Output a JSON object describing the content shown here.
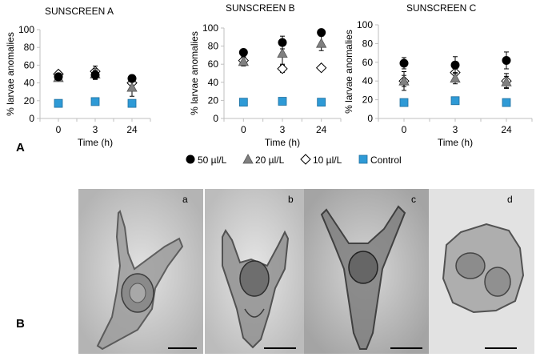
{
  "figure": {
    "panel_a_label": "A",
    "panel_b_label": "B"
  },
  "legend": {
    "items": [
      {
        "label": "50 µl/L",
        "symbol": "circle",
        "color": "#000000"
      },
      {
        "label": "20 µl/L",
        "symbol": "triangle",
        "color": "#808080"
      },
      {
        "label": "10 µl/L",
        "symbol": "diamond-open",
        "color": "#ffffff"
      },
      {
        "label": "Control",
        "symbol": "square",
        "color": "#2e9ad6"
      }
    ]
  },
  "chart_data": [
    {
      "type": "scatter",
      "title": "SUNSCREEN A",
      "xlabel": "Time (h)",
      "ylabel": "% larvae anomalies",
      "categories": [
        "0",
        "3",
        "24"
      ],
      "ylim": [
        0,
        100
      ],
      "yticks": [
        0,
        20,
        40,
        60,
        80,
        100
      ],
      "series": [
        {
          "name": "50 µl/L",
          "values": [
            47,
            49,
            45
          ],
          "errors": [
            3,
            5,
            4
          ]
        },
        {
          "name": "20 µl/L",
          "values": [
            46,
            50,
            35
          ],
          "errors": [
            3,
            6,
            10
          ]
        },
        {
          "name": "10 µl/L",
          "values": [
            50,
            53,
            40
          ],
          "errors": [
            3,
            6,
            8
          ]
        },
        {
          "name": "Control",
          "values": [
            17,
            19,
            17
          ],
          "errors": [
            0,
            0,
            0
          ]
        }
      ]
    },
    {
      "type": "scatter",
      "title": "SUNSCREEN B",
      "xlabel": "Time (h)",
      "ylabel": "% larvae anomalies",
      "categories": [
        "0",
        "3",
        "24"
      ],
      "ylim": [
        0,
        100
      ],
      "yticks": [
        0,
        20,
        40,
        60,
        80,
        100
      ],
      "series": [
        {
          "name": "50 µl/L",
          "values": [
            73,
            84,
            95
          ],
          "errors": [
            3,
            7,
            3
          ]
        },
        {
          "name": "20 µl/L",
          "values": [
            63,
            72,
            83
          ],
          "errors": [
            5,
            12,
            8
          ]
        },
        {
          "name": "10 µl/L",
          "values": [
            64,
            55,
            56
          ],
          "errors": [
            4,
            4,
            3
          ]
        },
        {
          "name": "Control",
          "values": [
            18,
            19,
            18
          ],
          "errors": [
            0,
            0,
            0
          ]
        }
      ]
    },
    {
      "type": "scatter",
      "title": "SUNSCREEN C",
      "xlabel": "Time (h)",
      "ylabel": "% larvae anomalies",
      "categories": [
        "0",
        "3",
        "24"
      ],
      "ylim": [
        0,
        100
      ],
      "yticks": [
        0,
        20,
        40,
        60,
        80,
        100
      ],
      "series": [
        {
          "name": "50 µl/L",
          "values": [
            59,
            57,
            62
          ],
          "errors": [
            6,
            9,
            9
          ]
        },
        {
          "name": "20 µl/L",
          "values": [
            40,
            43,
            39
          ],
          "errors": [
            6,
            6,
            6
          ]
        },
        {
          "name": "10 µl/L",
          "values": [
            40,
            49,
            40
          ],
          "errors": [
            10,
            7,
            8
          ]
        },
        {
          "name": "Control",
          "values": [
            17,
            19,
            17
          ],
          "errors": [
            0,
            0,
            0
          ]
        }
      ]
    }
  ],
  "micrographs": [
    {
      "label": "a"
    },
    {
      "label": "b"
    },
    {
      "label": "c"
    },
    {
      "label": "d"
    }
  ]
}
